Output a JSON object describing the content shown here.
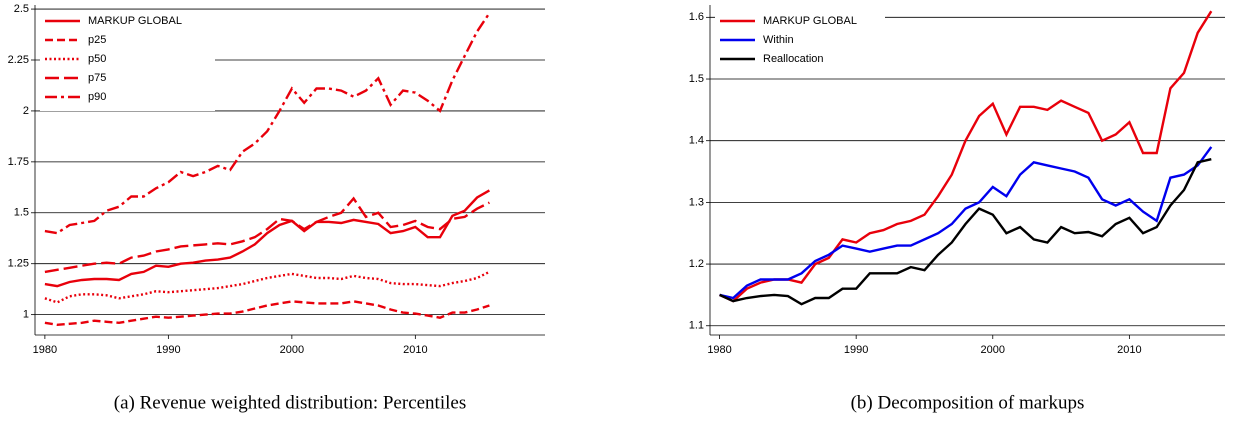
{
  "chart_data": [
    {
      "type": "line",
      "caption": "(a) Revenue weighted distribution: Percentiles",
      "x": [
        1980,
        1981,
        1982,
        1983,
        1984,
        1985,
        1986,
        1987,
        1988,
        1989,
        1990,
        1991,
        1992,
        1993,
        1994,
        1995,
        1996,
        1997,
        1998,
        1999,
        2000,
        2001,
        2002,
        2003,
        2004,
        2005,
        2006,
        2007,
        2008,
        2009,
        2010,
        2011,
        2012,
        2013,
        2014,
        2015,
        2016
      ],
      "xlim": [
        1979.2,
        2020.5
      ],
      "xticks": [
        1980,
        1990,
        2000,
        2010
      ],
      "ylim": [
        0.9,
        2.52
      ],
      "yticks": [
        1,
        1.25,
        1.5,
        1.75,
        2,
        2.25,
        2.5
      ],
      "grid": true,
      "legend": "top-left",
      "series": [
        {
          "name": "MARKUP GLOBAL",
          "color": "#e8000b",
          "dash": "solid",
          "values": [
            1.15,
            1.14,
            1.16,
            1.17,
            1.175,
            1.175,
            1.17,
            1.2,
            1.21,
            1.24,
            1.235,
            1.25,
            1.255,
            1.265,
            1.27,
            1.28,
            1.31,
            1.345,
            1.4,
            1.44,
            1.46,
            1.41,
            1.455,
            1.455,
            1.45,
            1.465,
            1.455,
            1.445,
            1.4,
            1.41,
            1.43,
            1.38,
            1.38,
            1.485,
            1.51,
            1.575,
            1.61
          ]
        },
        {
          "name": "p25",
          "color": "#e8000b",
          "dash": "dash",
          "values": [
            0.96,
            0.95,
            0.955,
            0.96,
            0.97,
            0.965,
            0.96,
            0.97,
            0.98,
            0.99,
            0.985,
            0.99,
            0.995,
            1.0,
            1.005,
            1.005,
            1.015,
            1.03,
            1.045,
            1.055,
            1.065,
            1.06,
            1.055,
            1.055,
            1.055,
            1.065,
            1.055,
            1.045,
            1.025,
            1.01,
            1.005,
            0.995,
            0.985,
            1.01,
            1.01,
            1.025,
            1.045
          ]
        },
        {
          "name": "p50",
          "color": "#e8000b",
          "dash": "dot",
          "values": [
            1.08,
            1.06,
            1.09,
            1.1,
            1.1,
            1.095,
            1.08,
            1.09,
            1.1,
            1.115,
            1.11,
            1.115,
            1.12,
            1.125,
            1.13,
            1.14,
            1.15,
            1.165,
            1.18,
            1.19,
            1.2,
            1.19,
            1.18,
            1.18,
            1.175,
            1.19,
            1.18,
            1.175,
            1.155,
            1.15,
            1.15,
            1.145,
            1.14,
            1.155,
            1.165,
            1.18,
            1.21
          ]
        },
        {
          "name": "p75",
          "color": "#e8000b",
          "dash": "longdash",
          "values": [
            1.21,
            1.22,
            1.23,
            1.24,
            1.25,
            1.255,
            1.25,
            1.28,
            1.29,
            1.31,
            1.32,
            1.335,
            1.34,
            1.345,
            1.35,
            1.345,
            1.36,
            1.38,
            1.42,
            1.47,
            1.46,
            1.42,
            1.455,
            1.48,
            1.5,
            1.57,
            1.48,
            1.5,
            1.43,
            1.44,
            1.46,
            1.43,
            1.42,
            1.47,
            1.48,
            1.52,
            1.55
          ]
        },
        {
          "name": "p90",
          "color": "#e8000b",
          "dash": "dashdot",
          "values": [
            1.41,
            1.4,
            1.44,
            1.45,
            1.46,
            1.51,
            1.53,
            1.58,
            1.58,
            1.62,
            1.65,
            1.7,
            1.68,
            1.7,
            1.73,
            1.71,
            1.8,
            1.84,
            1.9,
            2.0,
            2.11,
            2.04,
            2.11,
            2.11,
            2.1,
            2.07,
            2.1,
            2.16,
            2.03,
            2.1,
            2.09,
            2.05,
            2.0,
            2.15,
            2.27,
            2.39,
            2.48
          ]
        }
      ]
    },
    {
      "type": "line",
      "caption": "(b) Decomposition of markups",
      "x": [
        1980,
        1981,
        1982,
        1983,
        1984,
        1985,
        1986,
        1987,
        1988,
        1989,
        1990,
        1991,
        1992,
        1993,
        1994,
        1995,
        1996,
        1997,
        1998,
        1999,
        2000,
        2001,
        2002,
        2003,
        2004,
        2005,
        2006,
        2007,
        2008,
        2009,
        2010,
        2011,
        2012,
        2013,
        2014,
        2015,
        2016
      ],
      "xlim": [
        1979.3,
        2017
      ],
      "xticks": [
        1980,
        1990,
        2000,
        2010
      ],
      "ylim": [
        1.085,
        1.62
      ],
      "yticks": [
        1.1,
        1.2,
        1.3,
        1.4,
        1.5,
        1.6
      ],
      "grid": true,
      "legend": "top-left",
      "series": [
        {
          "name": "MARKUP GLOBAL",
          "color": "#e8000b",
          "dash": "solid",
          "values": [
            1.15,
            1.14,
            1.16,
            1.17,
            1.175,
            1.175,
            1.17,
            1.2,
            1.21,
            1.24,
            1.235,
            1.25,
            1.255,
            1.265,
            1.27,
            1.28,
            1.31,
            1.345,
            1.4,
            1.44,
            1.46,
            1.41,
            1.455,
            1.455,
            1.45,
            1.465,
            1.455,
            1.445,
            1.4,
            1.41,
            1.43,
            1.38,
            1.38,
            1.485,
            1.51,
            1.575,
            1.61
          ]
        },
        {
          "name": "Within",
          "color": "#0000ee",
          "dash": "solid",
          "values": [
            1.15,
            1.145,
            1.165,
            1.175,
            1.175,
            1.175,
            1.185,
            1.205,
            1.215,
            1.23,
            1.225,
            1.22,
            1.225,
            1.23,
            1.23,
            1.24,
            1.25,
            1.265,
            1.29,
            1.3,
            1.325,
            1.31,
            1.345,
            1.365,
            1.36,
            1.355,
            1.35,
            1.34,
            1.305,
            1.295,
            1.305,
            1.285,
            1.27,
            1.34,
            1.345,
            1.36,
            1.39
          ]
        },
        {
          "name": "Reallocation",
          "color": "#000000",
          "dash": "solid",
          "values": [
            1.15,
            1.14,
            1.145,
            1.148,
            1.15,
            1.148,
            1.135,
            1.145,
            1.145,
            1.16,
            1.16,
            1.185,
            1.185,
            1.185,
            1.195,
            1.19,
            1.215,
            1.235,
            1.265,
            1.29,
            1.28,
            1.25,
            1.26,
            1.24,
            1.235,
            1.26,
            1.25,
            1.252,
            1.245,
            1.265,
            1.275,
            1.25,
            1.26,
            1.295,
            1.32,
            1.365,
            1.37
          ]
        }
      ]
    }
  ]
}
